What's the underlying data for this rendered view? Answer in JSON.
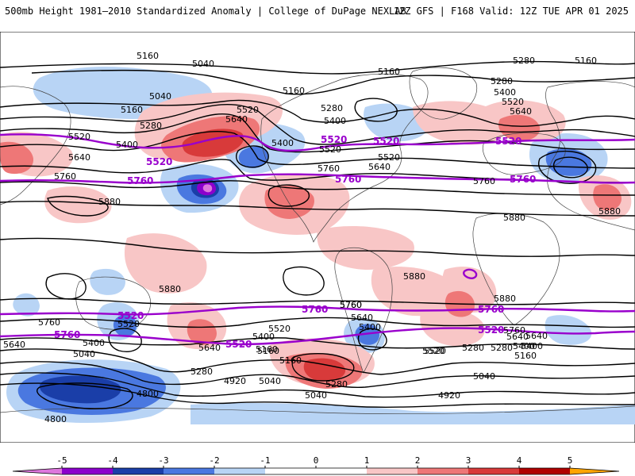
{
  "header": {
    "left_title": "500mb Height 1981–2010 Standardized Anomaly | College of DuPage NEXLAB",
    "right_title": "12Z GFS | F168 Valid: 12Z TUE APR 01 2025"
  },
  "map": {
    "contour_labels_black": [
      "5160",
      "5040",
      "5040",
      "5160",
      "5280",
      "5400",
      "5520",
      "5640",
      "5760",
      "5880",
      "5160",
      "5280",
      "5400",
      "5520",
      "5640",
      "5400",
      "5520",
      "5640",
      "5760",
      "5160",
      "5280",
      "5160",
      "5280",
      "5400",
      "5520",
      "5640",
      "5760",
      "5880",
      "5880",
      "5880",
      "5760",
      "5640",
      "5520",
      "5400",
      "5280",
      "5160",
      "5040",
      "4920",
      "5760",
      "5640",
      "5520",
      "5400",
      "5280",
      "5160",
      "5040",
      "4920",
      "4800",
      "4800",
      "5520",
      "5400",
      "5640",
      "5760",
      "5280",
      "5160",
      "5040",
      "5880",
      "5760",
      "5640",
      "5400",
      "5280",
      "5160",
      "5040",
      "5880",
      "5520",
      "5640",
      "5400",
      "5520"
    ],
    "contour_labels_purple": [
      "5520",
      "5520",
      "5760",
      "5760",
      "5520",
      "5760",
      "5760",
      "5520",
      "5760",
      "5760",
      "5520",
      "5520",
      "5520"
    ],
    "colors": {
      "neg5": "#dd77dd",
      "neg4": "#8b00cc",
      "neg3": "#1a3ea8",
      "neg2": "#4a78e0",
      "neg1": "#b8d4f5",
      "zero": "#ffffff",
      "pos1": "#f8c6c6",
      "pos2": "#ee7777",
      "pos3": "#d83a3a",
      "pos4": "#b00000",
      "pos5": "#ffa500",
      "height_contour": "#000000",
      "highlight_contour": "#9900cc",
      "land_border": "#444444"
    }
  },
  "colorbar": {
    "tick_labels": [
      "-5",
      "-4",
      "-3",
      "-2",
      "-1",
      "0",
      "1",
      "2",
      "3",
      "4",
      "5"
    ],
    "segment_colors": [
      "#dd77dd",
      "#8b00cc",
      "#1a3ea8",
      "#4a78e0",
      "#b8d4f5",
      "#ffffff",
      "#ffffff",
      "#f8c6c6",
      "#ee7777",
      "#d83a3a",
      "#b00000",
      "#ffa500"
    ]
  }
}
